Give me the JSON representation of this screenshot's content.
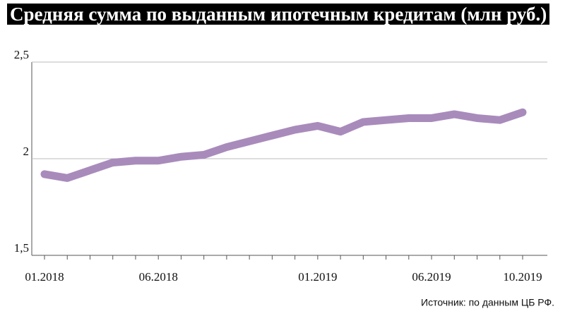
{
  "chart_data": {
    "type": "line",
    "title": "Средняя сумма по выданным ипотечным кредитам (млн руб.)",
    "source": "Источник: по данным ЦБ РФ.",
    "categories": [
      "01.2018",
      null,
      null,
      null,
      null,
      "06.2018",
      null,
      null,
      null,
      null,
      null,
      null,
      "01.2019",
      null,
      null,
      null,
      null,
      "06.2019",
      null,
      null,
      null,
      "10.2019"
    ],
    "series": [
      {
        "name": null,
        "color": "#a88bbb",
        "values": [
          1.92,
          1.9,
          1.94,
          1.98,
          1.99,
          1.99,
          2.01,
          2.02,
          2.06,
          2.09,
          2.12,
          2.15,
          2.17,
          2.14,
          2.19,
          2.2,
          2.21,
          2.21,
          2.23,
          2.21,
          2.2,
          2.24
        ]
      }
    ],
    "ylim": [
      1.5,
      2.5
    ],
    "yticks": [
      {
        "value": 1.5,
        "label": "1,5"
      },
      2,
      {
        "value": 2.5,
        "label": "2,5"
      }
    ],
    "grid": true
  }
}
